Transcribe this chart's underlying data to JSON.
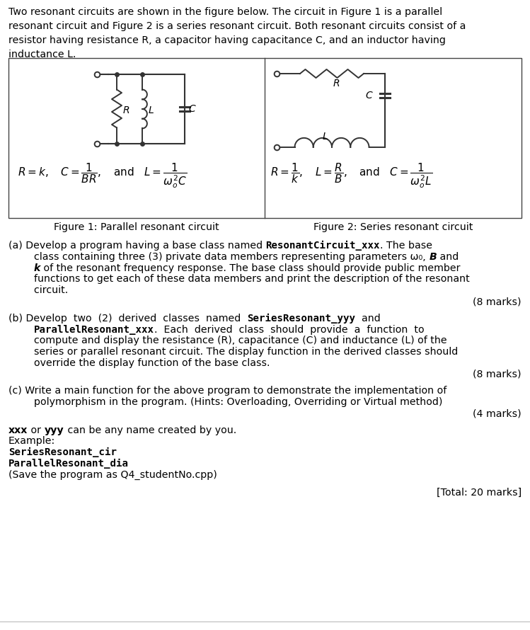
{
  "bg_color": "#ffffff",
  "fig1_caption": "Figure 1: Parallel resonant circuit",
  "fig2_caption": "Figure 2: Series resonant circuit",
  "part_a_marks": "(8 marks)",
  "part_b_marks": "(8 marks)",
  "part_c_marks": "(4 marks)",
  "total_marks": "[Total: 20 marks]"
}
